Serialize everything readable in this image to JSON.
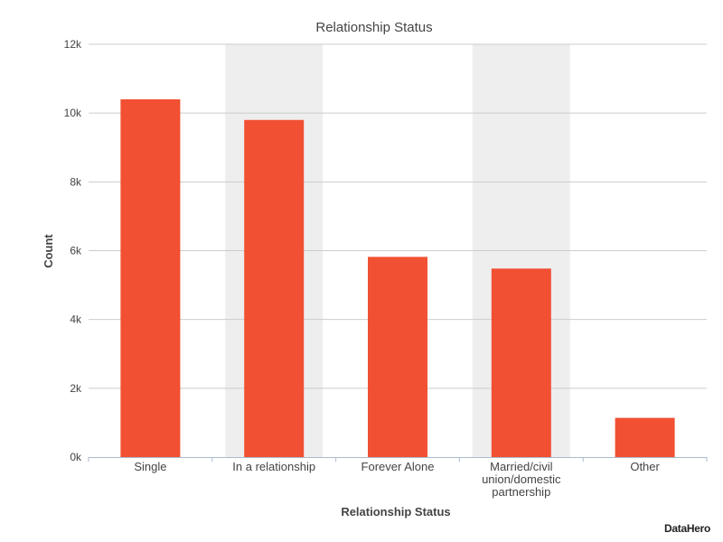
{
  "chart_data": {
    "type": "bar",
    "title": "Relationship Status",
    "xlabel": "Relationship Status",
    "ylabel": "Count",
    "categories": [
      "Single",
      "In a relationship",
      "Forever Alone",
      "Married/civil union/domestic partnership",
      "Other"
    ],
    "category_lines": [
      [
        "Single"
      ],
      [
        "In a relationship"
      ],
      [
        "Forever Alone"
      ],
      [
        "Married/civil",
        "union/domestic",
        "partnership"
      ],
      [
        "Other"
      ]
    ],
    "values": [
      10400,
      9800,
      5820,
      5480,
      1140
    ],
    "ylim": [
      0,
      12000
    ],
    "yticks": [
      0,
      2000,
      4000,
      6000,
      8000,
      10000,
      12000
    ],
    "ytick_labels": [
      "0k",
      "2k",
      "4k",
      "6k",
      "8k",
      "10k",
      "12k"
    ],
    "grid": true,
    "legend": "none",
    "colors": {
      "bar": "#F15033",
      "band": "#EEEEEE",
      "grid": "#CCCCCC",
      "axis": "#AABBCC",
      "text": "#444444"
    }
  },
  "brand": "DataHero"
}
